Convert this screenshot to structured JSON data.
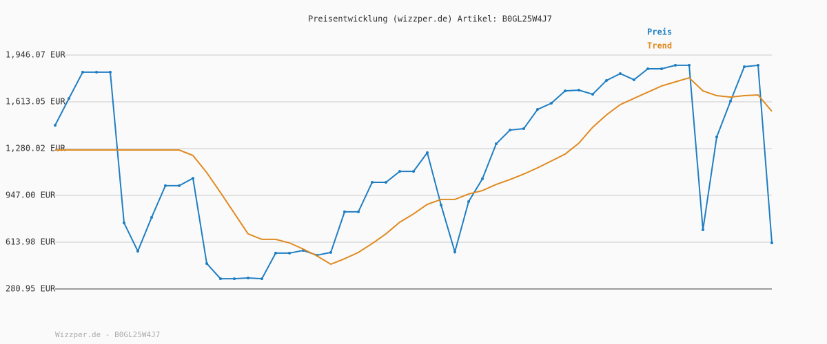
{
  "chart_data": {
    "type": "line",
    "title": "Preisentwicklung (wizzper.de) Artikel: B0GL25W4J7",
    "footer": "Wizzper.de - B0GL25W4J7",
    "ylim": [
      280.95,
      1946.07
    ],
    "yticks": [
      {
        "value": 280.95,
        "label": "280.95 EUR"
      },
      {
        "value": 613.98,
        "label": "613.98 EUR"
      },
      {
        "value": 947.0,
        "label": "947.00 EUR"
      },
      {
        "value": 1280.02,
        "label": "1,280.02 EUR"
      },
      {
        "value": 1613.05,
        "label": "1,613.05 EUR"
      },
      {
        "value": 1946.07,
        "label": "1,946.07 EUR"
      }
    ],
    "grid": true,
    "legend": "top-right",
    "series": [
      {
        "name": "Preis",
        "color": "#1f7ec2",
        "markers": true,
        "values": [
          1446,
          1637,
          1824,
          1824,
          1824,
          751,
          550,
          790,
          1016,
          1016,
          1069,
          462,
          354,
          354,
          359,
          354,
          536,
          536,
          555,
          521,
          541,
          830,
          830,
          1040,
          1040,
          1118,
          1118,
          1251,
          878,
          545,
          903,
          1065,
          1314,
          1412,
          1422,
          1559,
          1603,
          1691,
          1696,
          1667,
          1765,
          1814,
          1770,
          1848,
          1848,
          1873,
          1873,
          702,
          1363,
          1618,
          1863,
          1873,
          609
        ]
      },
      {
        "name": "Trend",
        "color": "#e08a20",
        "markers": false,
        "values": [
          1270,
          1270,
          1270,
          1270,
          1270,
          1270,
          1270,
          1270,
          1270,
          1270,
          1231,
          1109,
          967,
          820,
          673,
          634,
          634,
          609,
          565,
          516,
          457,
          496,
          541,
          604,
          673,
          756,
          815,
          883,
          918,
          918,
          957,
          981,
          1025,
          1060,
          1099,
          1143,
          1192,
          1241,
          1319,
          1432,
          1520,
          1593,
          1638,
          1682,
          1726,
          1755,
          1784,
          1691,
          1657,
          1647,
          1657,
          1662,
          1545
        ]
      }
    ]
  }
}
